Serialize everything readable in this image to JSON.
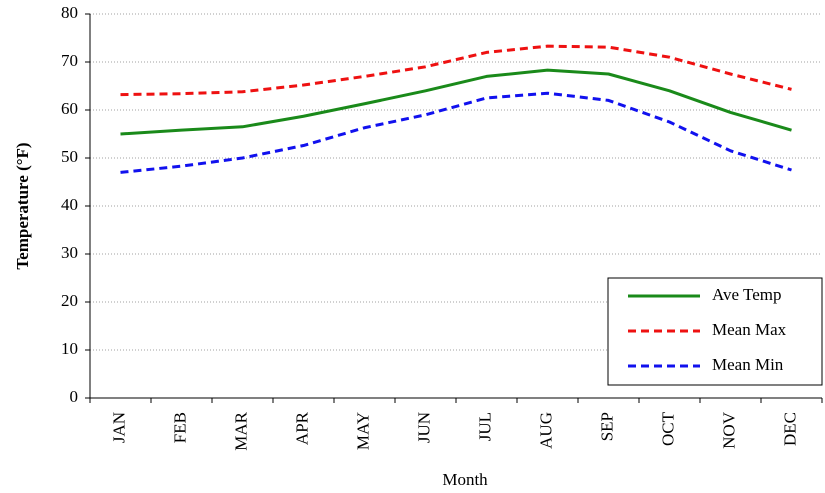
{
  "chart_data": {
    "type": "line",
    "xlabel": "Month",
    "ylabel": "Temperature (°F)",
    "categories": [
      "JAN",
      "FEB",
      "MAR",
      "APR",
      "MAY",
      "JUN",
      "JUL",
      "AUG",
      "SEP",
      "OCT",
      "NOV",
      "DEC"
    ],
    "series": [
      {
        "name": "Ave Temp",
        "color": "#1a8a1a",
        "dash": false,
        "values": [
          55,
          55.8,
          56.5,
          58.7,
          61.3,
          64,
          67,
          68.3,
          67.5,
          64,
          59.5,
          55.8
        ]
      },
      {
        "name": "Mean Max",
        "color": "#ee1111",
        "dash": true,
        "values": [
          63.2,
          63.4,
          63.8,
          65.2,
          67,
          69,
          72,
          73.3,
          73.1,
          71,
          67.5,
          64.3
        ]
      },
      {
        "name": "Mean Min",
        "color": "#1111ee",
        "dash": true,
        "values": [
          47,
          48.3,
          50,
          52.6,
          56.3,
          59,
          62.5,
          63.5,
          62,
          57.5,
          51.5,
          47.5
        ]
      }
    ],
    "ylim": [
      0,
      80
    ],
    "yticks": [
      0,
      10,
      20,
      30,
      40,
      50,
      60,
      70,
      80
    ],
    "grid": true,
    "legend": "lower right"
  }
}
